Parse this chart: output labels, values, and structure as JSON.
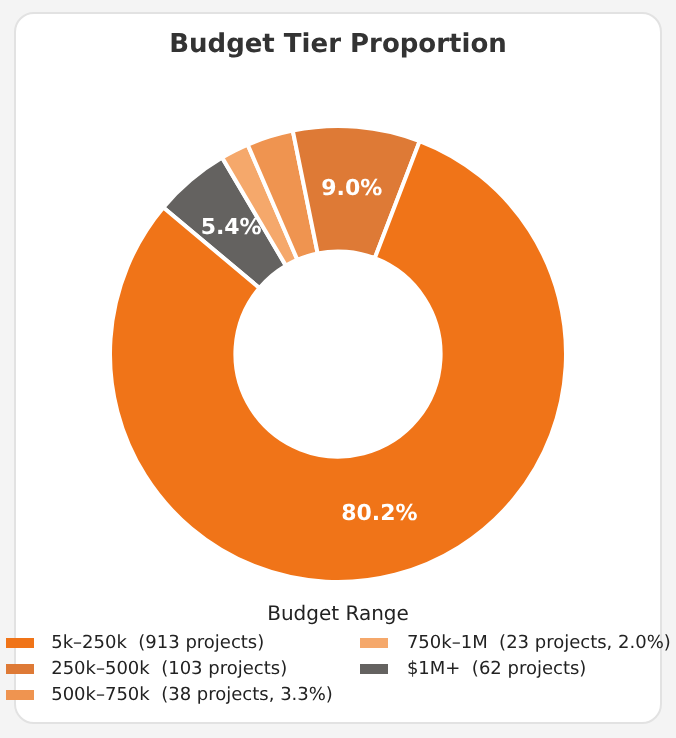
{
  "chart_data": {
    "type": "donut",
    "title": "Budget Tier Proportion",
    "legend_title": "Budget Range",
    "legend": "bottom",
    "categories": [
      "5k–250k  (913 projects)",
      "250k–500k  (103 projects)",
      "500k–750k  (38 projects, 3.3%)",
      "750k–1M  (23 projects, 2.0%)",
      "$1M+  (62 projects)"
    ],
    "values": [
      80.2,
      9.0,
      3.3,
      2.0,
      5.4
    ],
    "colors": [
      "#f07418",
      "#de7a36",
      "#ef9450",
      "#f5a86b",
      "#646260"
    ],
    "value_labels": [
      "80.2%",
      "9.0%",
      null,
      null,
      "5.4%"
    ]
  }
}
